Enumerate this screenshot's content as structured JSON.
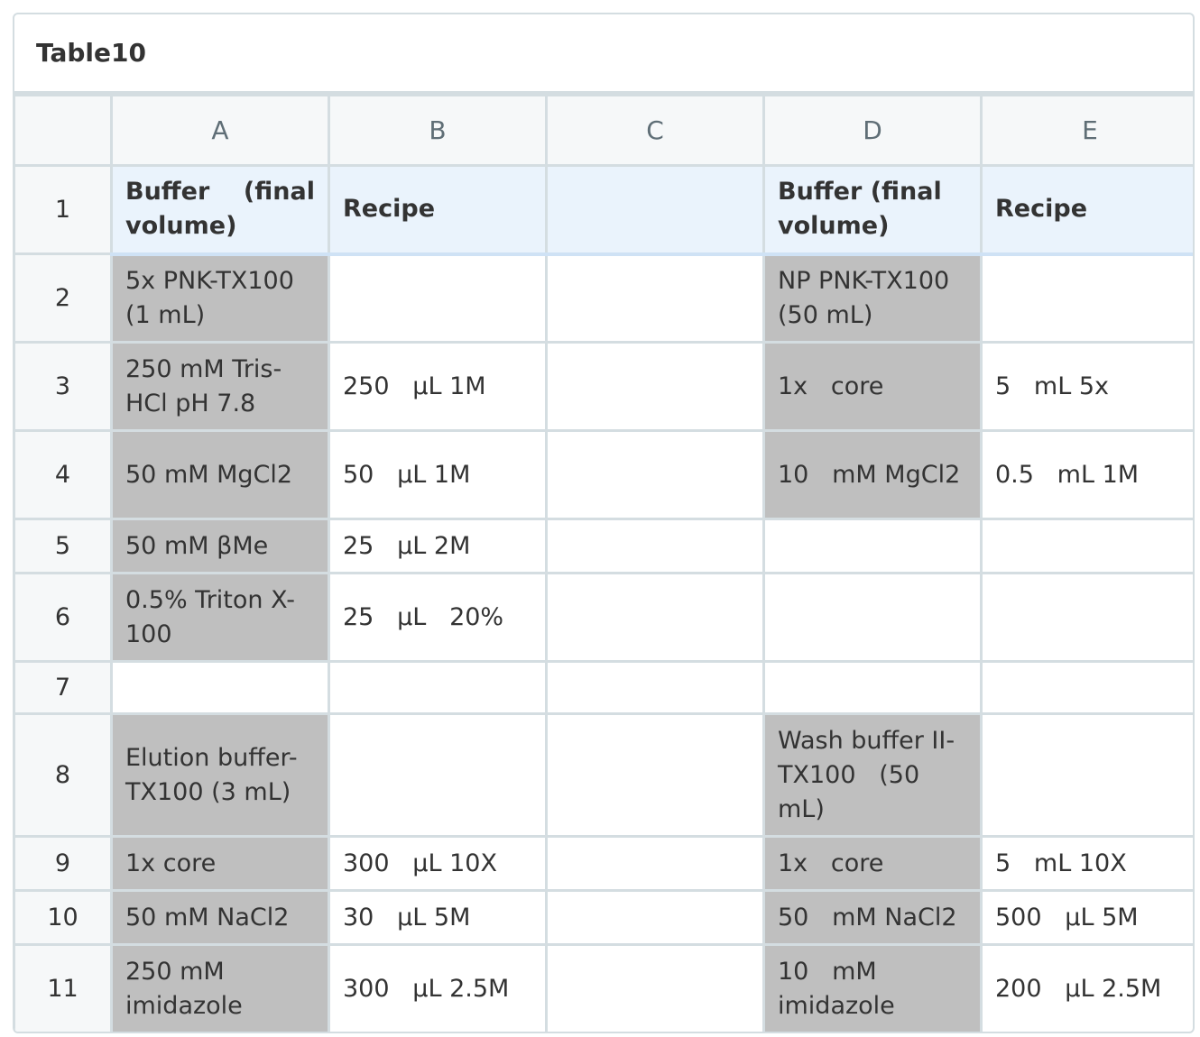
{
  "table": {
    "title": "Table10",
    "columns": [
      "A",
      "B",
      "C",
      "D",
      "E"
    ],
    "rows": [
      {
        "index": "1",
        "cells": [
          "Buffer    (final volume)",
          "Recipe",
          "",
          "Buffer (final volume)",
          "Recipe"
        ]
      },
      {
        "index": "2",
        "cells": [
          "5x PNK-TX100 (1 mL)",
          "",
          "",
          "NP PNK-TX100 (50 mL)",
          ""
        ]
      },
      {
        "index": "3",
        "cells": [
          "250 mM Tris-HCl pH 7.8",
          "250   µL 1M",
          "",
          "1x   core",
          "5   mL 5x"
        ]
      },
      {
        "index": "4",
        "cells": [
          "50 mM MgCl2",
          "50   µL 1M",
          "",
          "10   mM MgCl2",
          "0.5   mL 1M"
        ]
      },
      {
        "index": "5",
        "cells": [
          "50 mM βMe",
          "25   µL 2M",
          "",
          "",
          ""
        ]
      },
      {
        "index": "6",
        "cells": [
          "0.5% Triton X-100",
          "25   µL   20%",
          "",
          "",
          ""
        ]
      },
      {
        "index": "7",
        "cells": [
          "",
          "",
          "",
          "",
          ""
        ]
      },
      {
        "index": "8",
        "cells": [
          "Elution buffer-TX100 (3 mL)",
          "",
          "",
          "Wash buffer II-TX100   (50 mL)",
          ""
        ]
      },
      {
        "index": "9",
        "cells": [
          "1x core",
          "300   µL 10X",
          "",
          "1x   core",
          "5   mL 10X"
        ]
      },
      {
        "index": "10",
        "cells": [
          "50 mM NaCl2",
          "30   µL 5M",
          "",
          "50   mM NaCl2",
          "500   µL 5M"
        ]
      },
      {
        "index": "11",
        "cells": [
          "250 mM imidazole",
          "300   µL 2.5M",
          "",
          "10   mM imidazole",
          "200   µL 2.5M"
        ]
      }
    ]
  },
  "colors": {
    "border": "#d4dde1",
    "header_bg": "#f6f8f9",
    "row1_bg": "#eaf3fc",
    "shaded_cell_bg": "#bfbfbf",
    "text": "#333333",
    "column_letter": "#5f6e76"
  }
}
